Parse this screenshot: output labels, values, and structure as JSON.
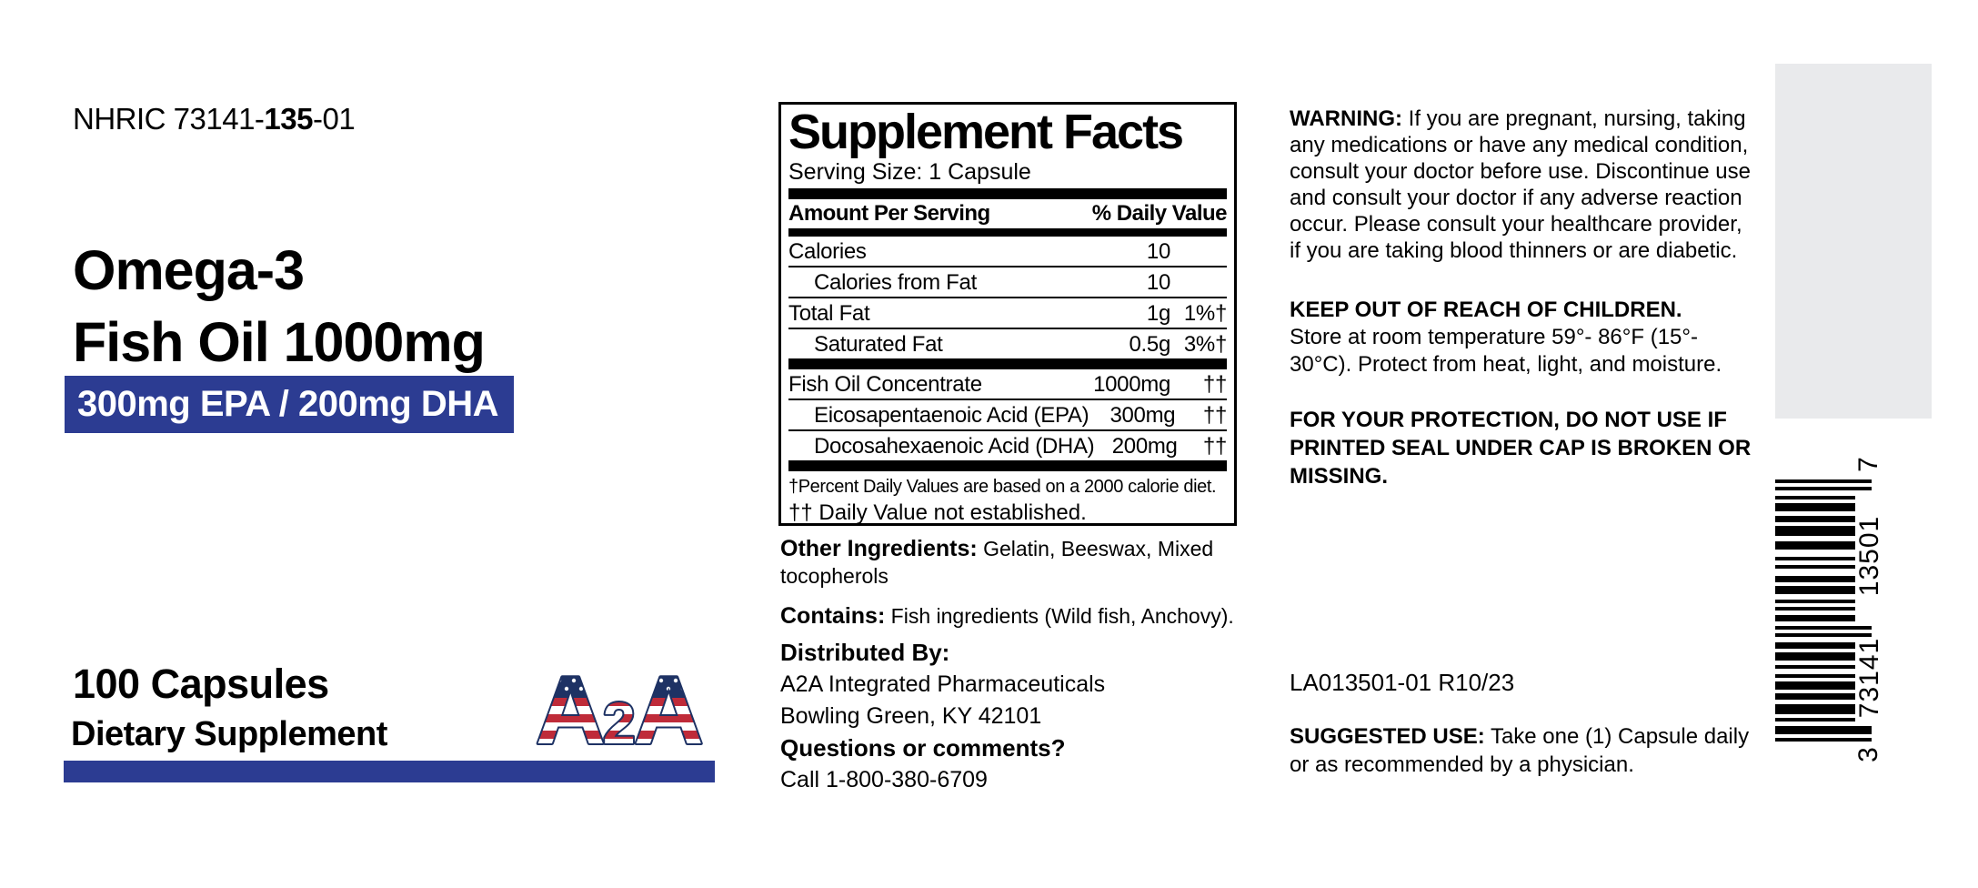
{
  "regulatory": {
    "nhric_prefix": "NHRIC 73141-",
    "nhric_bold": "135",
    "nhric_suffix": "-01"
  },
  "product": {
    "title_line1": "Omega-3",
    "title_line2": "Fish Oil 1000mg",
    "banner": "300mg EPA / 200mg DHA",
    "count": "100 Capsules",
    "type": "Dietary Supplement",
    "logo_a1": "A",
    "logo_2": "2",
    "logo_a2": "A"
  },
  "colors": {
    "blue": "#2c3c92",
    "navy": "#1e3264",
    "flag_red": "#bf2b39",
    "panel_gray": "#e9eaec",
    "text": "#000000"
  },
  "supplement_facts": {
    "title": "Supplement Facts",
    "serving_size": "Serving Size: 1 Capsule",
    "header": {
      "left": "Amount Per Serving",
      "right": "% Daily Value"
    },
    "rows": [
      {
        "name": "Calories",
        "amount": "10",
        "dv": ""
      },
      {
        "name": "Calories from Fat",
        "amount": "10",
        "dv": ""
      },
      {
        "name": "Total Fat",
        "amount": "1g",
        "dv": "1%†"
      },
      {
        "name": "Saturated Fat",
        "amount": "0.5g",
        "dv": "3%†"
      },
      {
        "name": "Fish Oil Concentrate",
        "amount": "1000mg",
        "dv": "††"
      },
      {
        "name": "Eicosapentaenoic Acid (EPA)",
        "amount": "300mg",
        "dv": "††"
      },
      {
        "name": "Docosahexaenoic Acid (DHA)",
        "amount": "200mg",
        "dv": "††"
      }
    ],
    "footnotes": [
      "†Percent Daily Values are based on a 2000 calorie diet.",
      "†† Daily Value not established."
    ]
  },
  "other_ingredients": {
    "label": "Other Ingredients:",
    "text": " Gelatin, Beeswax, Mixed tocopherols"
  },
  "contains": {
    "label": "Contains:",
    "text": " Fish ingredients (Wild fish, Anchovy)."
  },
  "distributor": {
    "label": "Distributed By:",
    "line1": "A2A Integrated Pharmaceuticals",
    "line2": "Bowling Green, KY 42101",
    "questions_label": "Questions or comments?",
    "phone": "Call 1-800-380-6709"
  },
  "warnings": {
    "warning_label": "WARNING:",
    "warning_text": " If you are pregnant, nursing, taking any medications or have any medical condition, consult your doctor before use. Discontinue use and consult your doctor if any adverse reaction occur. Please consult your healthcare provider, if you are taking blood thinners or are diabetic.",
    "keep_label": "KEEP OUT OF REACH OF CHILDREN.",
    "keep_text": "Store at room temperature 59°- 86°F (15°- 30°C). Protect from heat, light, and moisture.",
    "protection_text": "FOR YOUR PROTECTION, DO NOT USE IF PRINTED SEAL UNDER CAP IS BROKEN OR MISSING.",
    "lot": "LA013501-01 R10/23",
    "suggested_label": "SUGGESTED USE:",
    "suggested_text": " Take one (1) Capsule daily or as recommended by a physician."
  },
  "barcode": {
    "digit_first": "3",
    "digits_left": "73141",
    "digits_right": "13501",
    "digit_last": "7",
    "bars": [
      [
        4,
        4,
        1
      ],
      [
        4,
        6,
        1
      ],
      [
        4,
        4,
        0
      ],
      [
        9,
        5,
        0
      ],
      [
        7,
        4,
        0
      ],
      [
        11,
        6,
        0
      ],
      [
        9,
        8,
        0
      ],
      [
        4,
        5,
        0
      ],
      [
        4,
        8,
        0
      ],
      [
        7,
        4,
        0
      ],
      [
        9,
        6,
        0
      ],
      [
        4,
        4,
        0
      ],
      [
        4,
        5,
        0
      ],
      [
        7,
        5,
        0
      ],
      [
        4,
        4,
        1
      ],
      [
        4,
        6,
        1
      ],
      [
        7,
        4,
        0
      ],
      [
        9,
        5,
        0
      ],
      [
        4,
        6,
        0
      ],
      [
        4,
        4,
        0
      ],
      [
        9,
        4,
        0
      ],
      [
        7,
        5,
        0
      ],
      [
        11,
        4,
        0
      ],
      [
        4,
        5,
        0
      ],
      [
        9,
        4,
        1
      ],
      [
        4,
        0,
        1
      ]
    ]
  }
}
